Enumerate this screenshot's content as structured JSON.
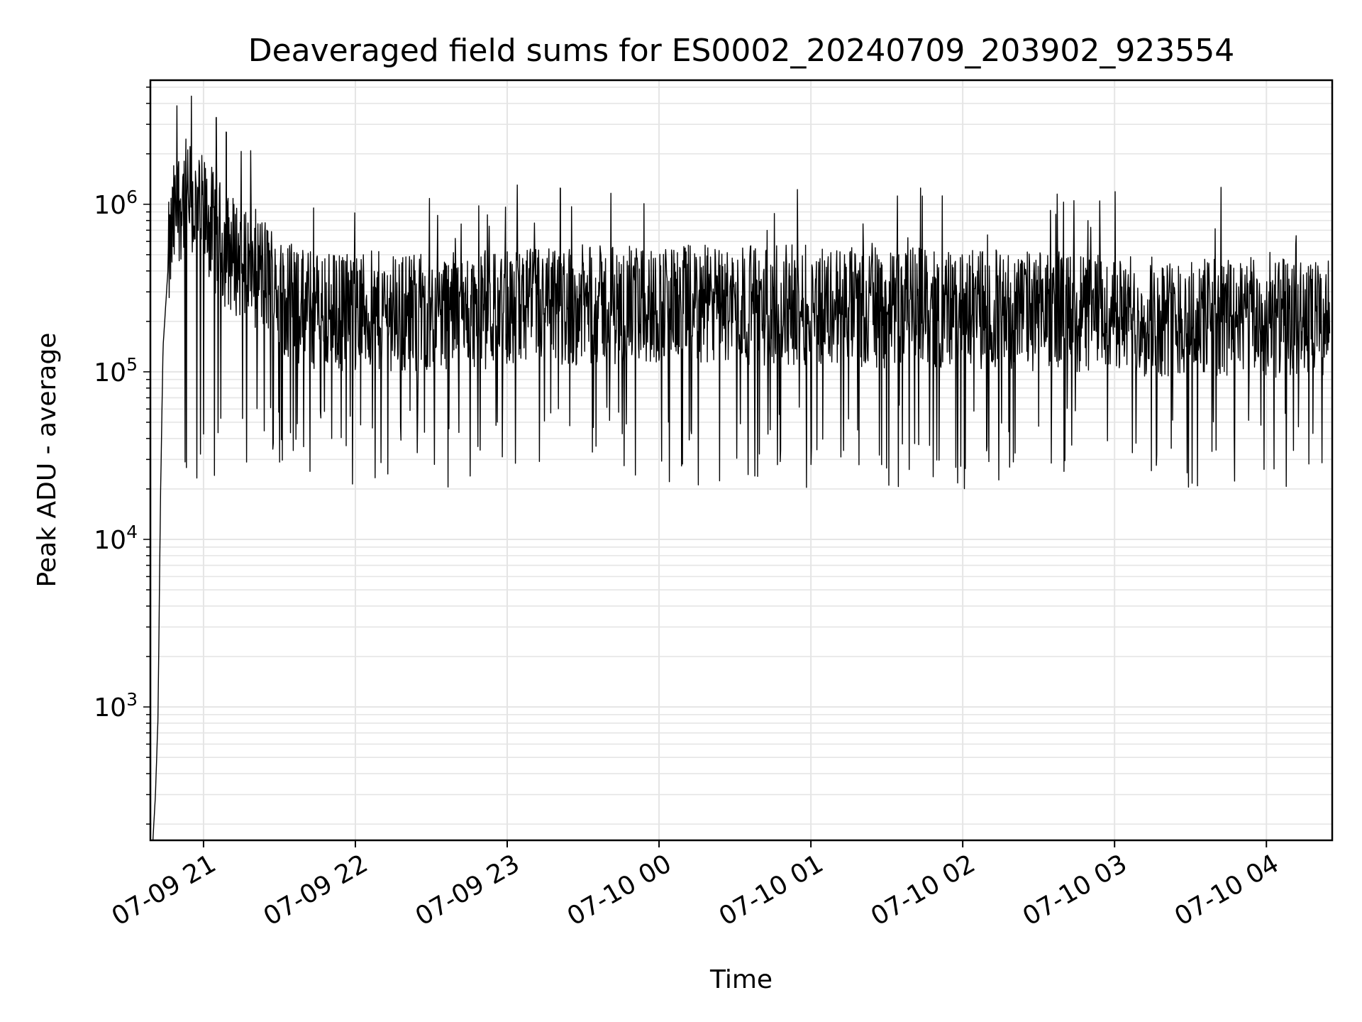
{
  "chart_data": {
    "type": "line",
    "title": "Deaveraged field sums for ES0002_20240709_203902_923554",
    "xlabel": "Time",
    "ylabel": "Peak ADU - average",
    "yscale": "log",
    "ylim": [
      160,
      5500000
    ],
    "xlim": [
      "2024-07-09 20:39",
      "2024-07-10 04:26"
    ],
    "grid": true,
    "line_color": "#000000",
    "grid_color": "#e5e5e5",
    "x_ticks": [
      {
        "value": "2024-07-09 21:00",
        "label": "07-09 21"
      },
      {
        "value": "2024-07-09 22:00",
        "label": "07-09 22"
      },
      {
        "value": "2024-07-09 23:00",
        "label": "07-09 23"
      },
      {
        "value": "2024-07-10 00:00",
        "label": "07-10 00"
      },
      {
        "value": "2024-07-10 01:00",
        "label": "07-10 01"
      },
      {
        "value": "2024-07-10 02:00",
        "label": "07-10 02"
      },
      {
        "value": "2024-07-10 03:00",
        "label": "07-10 03"
      },
      {
        "value": "2024-07-10 04:00",
        "label": "07-10 04"
      }
    ],
    "y_ticks": [
      {
        "value": 1000,
        "base": "10",
        "exp": "3"
      },
      {
        "value": 10000,
        "base": "10",
        "exp": "4"
      },
      {
        "value": 100000,
        "base": "10",
        "exp": "5"
      },
      {
        "value": 1000000,
        "base": "10",
        "exp": "6"
      }
    ],
    "series": [
      {
        "x": [
          "2024-07-09 20:40",
          "2024-07-09 20:41",
          "2024-07-09 20:42",
          "2024-07-09 20:43",
          "2024-07-09 20:44",
          "2024-07-09 20:46",
          "2024-07-09 20:48",
          "2024-07-09 20:50",
          "2024-07-09 20:52",
          "2024-07-09 20:54",
          "2024-07-09 20:56",
          "2024-07-09 20:58",
          "2024-07-09 21:00",
          "2024-07-09 21:02",
          "2024-07-09 21:04",
          "2024-07-09 21:06",
          "2024-07-09 21:08",
          "2024-07-09 21:10",
          "2024-07-09 21:14",
          "2024-07-09 21:18",
          "2024-07-09 21:22",
          "2024-07-09 21:26",
          "2024-07-09 21:30",
          "2024-07-09 21:35",
          "2024-07-09 21:40",
          "2024-07-09 21:50",
          "2024-07-09 22:00",
          "2024-07-09 22:30",
          "2024-07-09 23:00",
          "2024-07-09 23:30",
          "2024-07-10 00:00",
          "2024-07-10 00:30",
          "2024-07-10 01:00",
          "2024-07-10 01:30",
          "2024-07-10 02:00",
          "2024-07-10 02:30",
          "2024-07-10 03:00",
          "2024-07-10 03:30",
          "2024-07-10 04:00",
          "2024-07-10 04:25"
        ],
        "y": [
          160,
          300,
          850,
          18000,
          140000,
          420000,
          750000,
          1000000,
          1100000,
          1050000,
          950000,
          900000,
          850000,
          800000,
          700000,
          620000,
          560000,
          520000,
          480000,
          440000,
          400000,
          360000,
          300000,
          260000,
          240000,
          230000,
          230000,
          230000,
          240000,
          250000,
          250000,
          250000,
          250000,
          240000,
          240000,
          230000,
          220000,
          210000,
          210000,
          200000
        ],
        "spread": 0.45,
        "drops_to": 20000,
        "peaks": [
          {
            "x": "2024-07-09 21:05",
            "y": 3300000
          },
          {
            "x": "2024-07-09 21:09",
            "y": 2700000
          },
          {
            "x": "2024-07-09 23:21",
            "y": 1250000
          }
        ]
      }
    ]
  }
}
